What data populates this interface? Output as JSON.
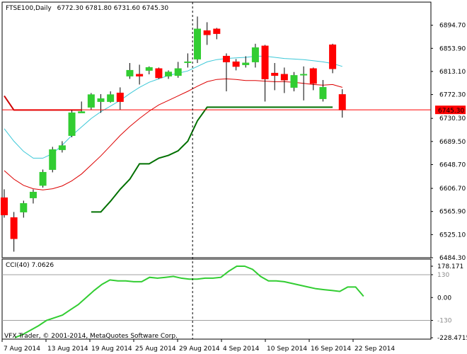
{
  "header": {
    "symbol": "FTSE100,Daily",
    "ohlc": "6772.30 6781.80 6731.60 6745.30"
  },
  "indicator": {
    "label": "CCI(40) 7.0626"
  },
  "footer": {
    "copyright": "VFX Trader, © 2001-2014, MetaQuotes Software Corp."
  },
  "colors": {
    "bull": "#32cd32",
    "bear": "#ff0000",
    "wick": "#000000",
    "ma_fast": "#3cc8d8",
    "ma_slow": "#dd0000",
    "stop_green": "#007000",
    "stop_red": "#cc0000",
    "cci_line": "#32cd32",
    "price_line": "#ff0000",
    "badge_bg": "#ff0000",
    "cursor": "#000000"
  },
  "chart_data": [
    {
      "type": "candlestick",
      "title": "FTSE100,Daily",
      "price_axis": [
        "6894.70",
        "6853.90",
        "6813.10",
        "6772.30",
        "6730.30",
        "6689.50",
        "6648.70",
        "6606.70",
        "6565.90",
        "6525.10",
        "6484.30"
      ],
      "last_price_label": "6745.30",
      "last_price": 6745.3,
      "ylim": [
        6484.3,
        6935.5
      ],
      "x_labels": [
        "7 Aug 2014",
        "13 Aug 2014",
        "19 Aug 2014",
        "25 Aug 2014",
        "29 Aug 2014",
        "4 Sep 2014",
        "10 Sep 2014",
        "16 Sep 2014",
        "22 Sep 2014"
      ],
      "cursor_index": 19.5,
      "candles": [
        {
          "o": 6590,
          "h": 6605,
          "l": 6555,
          "c": 6560
        },
        {
          "o": 6555,
          "h": 6565,
          "l": 6495,
          "c": 6518
        },
        {
          "o": 6565,
          "h": 6585,
          "l": 6555,
          "c": 6580
        },
        {
          "o": 6590,
          "h": 6605,
          "l": 6580,
          "c": 6600
        },
        {
          "o": 6612,
          "h": 6640,
          "l": 6608,
          "c": 6635
        },
        {
          "o": 6640,
          "h": 6680,
          "l": 6635,
          "c": 6675
        },
        {
          "o": 6675,
          "h": 6690,
          "l": 6670,
          "c": 6682
        },
        {
          "o": 6700,
          "h": 6745,
          "l": 6697,
          "c": 6740
        },
        {
          "o": 6740,
          "h": 6760,
          "l": 6740,
          "c": 6742
        },
        {
          "o": 6750,
          "h": 6775,
          "l": 6745,
          "c": 6772
        },
        {
          "o": 6760,
          "h": 6773,
          "l": 6740,
          "c": 6765
        },
        {
          "o": 6760,
          "h": 6778,
          "l": 6758,
          "c": 6772
        },
        {
          "o": 6775,
          "h": 6785,
          "l": 6745,
          "c": 6760
        },
        {
          "o": 6805,
          "h": 6828,
          "l": 6800,
          "c": 6815
        },
        {
          "o": 6808,
          "h": 6825,
          "l": 6790,
          "c": 6805
        },
        {
          "o": 6815,
          "h": 6822,
          "l": 6808,
          "c": 6820
        },
        {
          "o": 6818,
          "h": 6820,
          "l": 6800,
          "c": 6802
        },
        {
          "o": 6805,
          "h": 6815,
          "l": 6800,
          "c": 6812
        },
        {
          "o": 6806,
          "h": 6830,
          "l": 6802,
          "c": 6818
        },
        {
          "o": 6830,
          "h": 6845,
          "l": 6820,
          "c": 6830
        },
        {
          "o": 6835,
          "h": 6910,
          "l": 6828,
          "c": 6888
        },
        {
          "o": 6885,
          "h": 6900,
          "l": 6860,
          "c": 6878
        },
        {
          "o": 6888,
          "h": 6890,
          "l": 6870,
          "c": 6880
        },
        {
          "o": 6840,
          "h": 6845,
          "l": 6778,
          "c": 6830
        },
        {
          "o": 6830,
          "h": 6835,
          "l": 6815,
          "c": 6822
        },
        {
          "o": 6825,
          "h": 6840,
          "l": 6820,
          "c": 6828
        },
        {
          "o": 6830,
          "h": 6862,
          "l": 6820,
          "c": 6855
        },
        {
          "o": 6858,
          "h": 6860,
          "l": 6760,
          "c": 6800
        },
        {
          "o": 6810,
          "h": 6828,
          "l": 6780,
          "c": 6806
        },
        {
          "o": 6808,
          "h": 6820,
          "l": 6775,
          "c": 6798
        },
        {
          "o": 6785,
          "h": 6812,
          "l": 6778,
          "c": 6806
        },
        {
          "o": 6808,
          "h": 6822,
          "l": 6762,
          "c": 6808
        },
        {
          "o": 6818,
          "h": 6820,
          "l": 6780,
          "c": 6792
        },
        {
          "o": 6765,
          "h": 6798,
          "l": 6760,
          "c": 6785
        },
        {
          "o": 6860,
          "h": 6862,
          "l": 6810,
          "c": 6818
        },
        {
          "o": 6772.3,
          "h": 6781.8,
          "l": 6731.6,
          "c": 6745.3
        }
      ],
      "ma_fast": [
        6712,
        6690,
        6672,
        6660,
        6660,
        6668,
        6683,
        6700,
        6715,
        6730,
        6742,
        6752,
        6762,
        6774,
        6785,
        6794,
        6800,
        6806,
        6810,
        6814,
        6822,
        6830,
        6834,
        6836,
        6837,
        6838,
        6840,
        6840,
        6838,
        6836,
        6835,
        6834,
        6832,
        6830,
        6827,
        6822
      ],
      "ma_slow": [
        6638,
        6623,
        6612,
        6606,
        6604,
        6606,
        6611,
        6620,
        6632,
        6648,
        6664,
        6682,
        6700,
        6716,
        6730,
        6743,
        6754,
        6762,
        6770,
        6778,
        6787,
        6795,
        6799,
        6800,
        6799,
        6797,
        6797,
        6796,
        6795,
        6795,
        6794,
        6792,
        6790,
        6789,
        6790,
        6785
      ],
      "stop_red": [
        6770,
        6745,
        6745,
        6745,
        6745,
        6745,
        6745,
        6745,
        6745
      ],
      "stop_green": [
        null,
        null,
        null,
        null,
        null,
        null,
        null,
        null,
        null,
        6565,
        6565,
        6584,
        6605,
        6623,
        6650,
        6650,
        6660,
        6665,
        6673,
        6690,
        6726,
        6750,
        6750,
        6750,
        6750,
        6750,
        6750,
        6750,
        6750,
        6750,
        6750,
        6750,
        6750,
        6750,
        6750
      ],
      "ma_fast_name": "",
      "ma_slow_name": ""
    },
    {
      "type": "line",
      "title": "CCI(40) 7.0626",
      "y_labels": [
        "178.171",
        "130",
        "0.00",
        "-130",
        "-228.4715"
      ],
      "levels": [
        130,
        -130
      ],
      "ylim": [
        -228.4715,
        178.171
      ],
      "series": [
        {
          "values": [
            -228,
            -210,
            -185,
            -160,
            -130,
            -115,
            -100,
            -70,
            -40,
            0,
            40,
            75,
            100,
            95,
            95,
            90,
            90,
            115,
            110,
            115,
            120,
            110,
            105,
            105,
            110,
            110,
            115,
            150,
            178,
            178,
            160,
            120,
            95,
            95,
            90,
            80,
            70,
            60,
            50,
            45,
            40,
            35,
            60,
            60,
            7
          ]
        }
      ]
    }
  ]
}
